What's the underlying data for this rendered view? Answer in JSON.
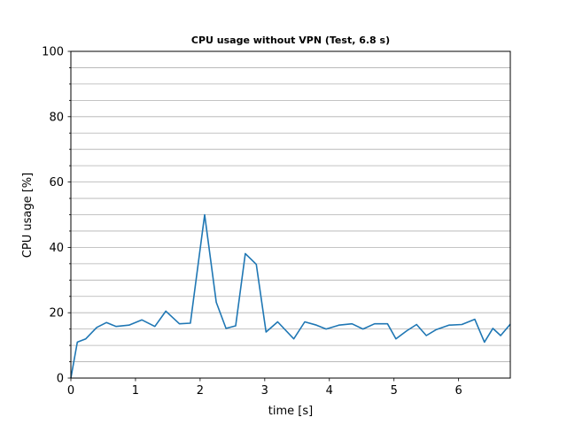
{
  "chart_data": {
    "type": "line",
    "title": "CPU usage without VPN (Test, 6.8 s)",
    "xlabel": "time [s]",
    "ylabel": "CPU usage [%]",
    "xlim": [
      0,
      6.8
    ],
    "ylim": [
      0,
      100
    ],
    "xticks": [
      0,
      1,
      2,
      3,
      4,
      5,
      6
    ],
    "xtick_labels": [
      "0",
      "1",
      "2",
      "3",
      "4",
      "5",
      "6"
    ],
    "yticks": [
      0,
      20,
      40,
      60,
      80,
      100
    ],
    "ytick_labels": [
      "0",
      "20",
      "40",
      "60",
      "80",
      "100"
    ],
    "y_minor_step": 5,
    "grid": "horizontal major and minor",
    "line_color": "#1f77b4",
    "series": [
      {
        "x": [
          0.0,
          0.1,
          0.23,
          0.4,
          0.55,
          0.7,
          0.9,
          1.1,
          1.3,
          1.47,
          1.68,
          1.85,
          2.07,
          2.25,
          2.4,
          2.55,
          2.7,
          2.87,
          3.02,
          3.2,
          3.45,
          3.62,
          3.8,
          3.95,
          4.15,
          4.35,
          4.52,
          4.7,
          4.9,
          5.03,
          5.2,
          5.35,
          5.5,
          5.65,
          5.85,
          6.05,
          6.25,
          6.4,
          6.53,
          6.65,
          6.8
        ],
        "values": [
          0,
          11,
          12,
          15.5,
          17,
          15.8,
          16.2,
          17.8,
          15.8,
          20.5,
          16.6,
          16.8,
          50.0,
          23.2,
          15.2,
          16.0,
          38.1,
          34.8,
          14.1,
          17.2,
          12.0,
          17.2,
          16.2,
          15.0,
          16.2,
          16.6,
          15.0,
          16.6,
          16.6,
          12.0,
          14.5,
          16.4,
          13.0,
          14.8,
          16.2,
          16.4,
          18.0,
          11.0,
          15.2,
          13.0,
          16.5
        ]
      }
    ]
  }
}
